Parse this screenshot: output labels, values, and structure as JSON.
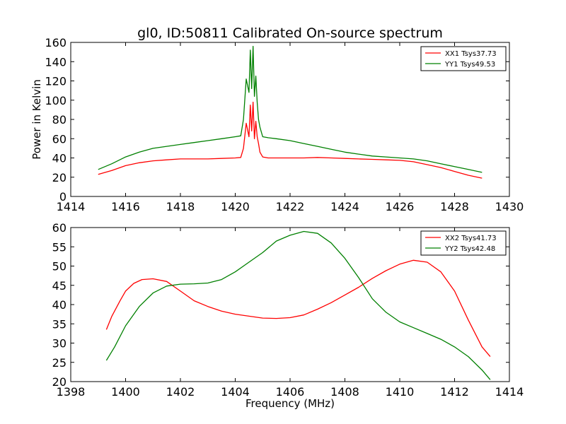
{
  "title": "gl0, ID:50811 Calibrated On-source spectrum",
  "chart_data": [
    {
      "type": "line",
      "title": "gl0, ID:50811 Calibrated On-source spectrum",
      "xlabel": "",
      "ylabel": "Power in Kelvin",
      "xlim": [
        1414,
        1430
      ],
      "ylim": [
        0,
        160
      ],
      "xticks": [
        "1414",
        "1416",
        "1418",
        "1420",
        "1422",
        "1424",
        "1426",
        "1428",
        "1430"
      ],
      "yticks": [
        "0",
        "20",
        "40",
        "60",
        "80",
        "100",
        "120",
        "140",
        "160"
      ],
      "grid": false,
      "legend_position": "top-right",
      "series": [
        {
          "name": "XX1 Tsys37.73",
          "color": "#ff0000",
          "x": [
            1415.0,
            1415.5,
            1416.0,
            1416.5,
            1417.0,
            1417.5,
            1418.0,
            1418.5,
            1419.0,
            1419.5,
            1420.0,
            1420.2,
            1420.3,
            1420.4,
            1420.5,
            1420.55,
            1420.6,
            1420.65,
            1420.7,
            1420.75,
            1420.8,
            1420.85,
            1420.9,
            1421.0,
            1421.2,
            1421.5,
            1422.0,
            1422.5,
            1423.0,
            1423.5,
            1424.0,
            1424.5,
            1425.0,
            1425.5,
            1426.0,
            1426.5,
            1427.0,
            1427.5,
            1428.0,
            1428.5,
            1429.0
          ],
          "values": [
            23,
            27,
            32,
            35,
            37,
            38,
            39,
            39,
            39,
            39.5,
            40,
            40.5,
            50,
            76,
            62,
            95,
            68,
            98,
            60,
            78,
            62,
            55,
            46,
            41,
            40,
            40,
            40,
            40,
            40.5,
            40,
            39.5,
            39,
            38.5,
            38,
            37.5,
            36,
            33,
            30,
            26,
            22,
            19
          ]
        },
        {
          "name": "YY1 Tsys49.53",
          "color": "#008000",
          "x": [
            1415.0,
            1415.5,
            1416.0,
            1416.5,
            1417.0,
            1417.5,
            1418.0,
            1418.5,
            1419.0,
            1419.5,
            1420.0,
            1420.2,
            1420.3,
            1420.4,
            1420.5,
            1420.55,
            1420.6,
            1420.65,
            1420.7,
            1420.75,
            1420.8,
            1420.85,
            1420.9,
            1421.0,
            1421.2,
            1421.5,
            1422.0,
            1422.5,
            1423.0,
            1423.5,
            1424.0,
            1424.5,
            1425.0,
            1425.5,
            1426.0,
            1426.5,
            1427.0,
            1427.5,
            1428.0,
            1428.5,
            1429.0
          ],
          "values": [
            28,
            34,
            41,
            46,
            50,
            52,
            54,
            56,
            58,
            60,
            62,
            63,
            80,
            122,
            108,
            152,
            112,
            156,
            104,
            125,
            98,
            80,
            72,
            62,
            61,
            60,
            58,
            55,
            52,
            49,
            46,
            44,
            42,
            41,
            40,
            39,
            37,
            34,
            31,
            28,
            25
          ]
        }
      ]
    },
    {
      "type": "line",
      "title": "",
      "xlabel": "Frequency (MHz)",
      "ylabel": "",
      "xlim": [
        1398,
        1414
      ],
      "ylim": [
        20,
        60
      ],
      "xticks": [
        "1398",
        "1400",
        "1402",
        "1404",
        "1406",
        "1408",
        "1410",
        "1412",
        "1414"
      ],
      "yticks": [
        "20",
        "25",
        "30",
        "35",
        "40",
        "45",
        "50",
        "55",
        "60"
      ],
      "grid": false,
      "legend_position": "top-right",
      "series": [
        {
          "name": "XX2 Tsys41.73",
          "color": "#ff0000",
          "x": [
            1399.3,
            1399.5,
            1399.8,
            1400.0,
            1400.3,
            1400.6,
            1401.0,
            1401.5,
            1402.0,
            1402.5,
            1403.0,
            1403.5,
            1404.0,
            1404.5,
            1405.0,
            1405.5,
            1406.0,
            1406.5,
            1407.0,
            1407.5,
            1408.0,
            1408.5,
            1409.0,
            1409.5,
            1410.0,
            1410.5,
            1411.0,
            1411.5,
            1412.0,
            1412.5,
            1413.0,
            1413.3
          ],
          "values": [
            33.5,
            37,
            41,
            43.5,
            45.5,
            46.5,
            46.7,
            46,
            43.5,
            41,
            39.5,
            38.3,
            37.5,
            37,
            36.5,
            36.4,
            36.6,
            37.3,
            38.8,
            40.5,
            42.5,
            44.5,
            46.8,
            48.8,
            50.5,
            51.5,
            51,
            48.5,
            43.5,
            36,
            29,
            26.5
          ]
        },
        {
          "name": "YY2 Tsys42.48",
          "color": "#008000",
          "x": [
            1399.3,
            1399.6,
            1400.0,
            1400.5,
            1401.0,
            1401.5,
            1402.0,
            1402.5,
            1403.0,
            1403.5,
            1404.0,
            1404.5,
            1405.0,
            1405.5,
            1406.0,
            1406.5,
            1407.0,
            1407.5,
            1408.0,
            1408.5,
            1409.0,
            1409.5,
            1410.0,
            1410.5,
            1411.0,
            1411.5,
            1412.0,
            1412.5,
            1413.0,
            1413.3
          ],
          "values": [
            25.5,
            29,
            34.5,
            39.5,
            43,
            44.8,
            45.3,
            45.4,
            45.6,
            46.5,
            48.5,
            51,
            53.5,
            56.5,
            58,
            59,
            58.5,
            56,
            52,
            47,
            41.5,
            38,
            35.5,
            34,
            32.5,
            31,
            29,
            26.5,
            23,
            20.5
          ]
        }
      ]
    }
  ]
}
